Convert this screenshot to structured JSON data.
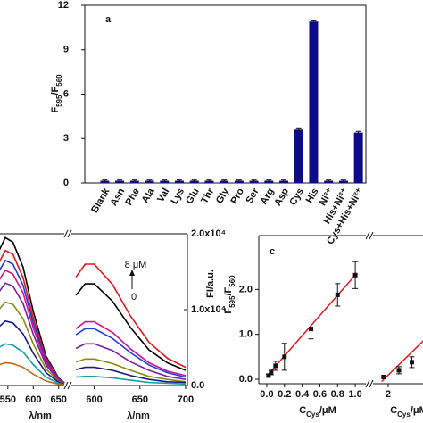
{
  "chart_data": [
    {
      "type": "bar",
      "label": "a",
      "ylabel": [
        {
          "text": "F"
        },
        {
          "text": "595",
          "sub": true
        },
        {
          "text": "/F"
        },
        {
          "text": "560",
          "sub": true
        }
      ],
      "categories": [
        "Blank",
        "Asn",
        "Phe",
        "Ala",
        "Val",
        "Lys",
        "Glu",
        "Thr",
        "Gly",
        "Pro",
        "Ser",
        "Arg",
        "Asp",
        "Cys",
        "His",
        "Ni²⁺",
        "His+Ni²⁺",
        "Cys+His+Ni²⁺"
      ],
      "values": [
        0.15,
        0.15,
        0.15,
        0.15,
        0.15,
        0.15,
        0.15,
        0.15,
        0.15,
        0.15,
        0.15,
        0.15,
        0.15,
        3.6,
        10.9,
        0.15,
        0.15,
        3.4
      ],
      "errors": [
        0.05,
        0.05,
        0.05,
        0.05,
        0.05,
        0.05,
        0.05,
        0.05,
        0.05,
        0.05,
        0.05,
        0.05,
        0.05,
        0.12,
        0.1,
        0.05,
        0.05,
        0.08
      ],
      "color": "#0c0c8a",
      "ylim": [
        0,
        12
      ],
      "yticks": [
        0,
        3,
        6,
        9,
        12
      ]
    },
    {
      "type": "line",
      "xlabel": "λ/nm",
      "ylabel": "FI/a.u.",
      "annotation": {
        "top": "8 μM",
        "bottom": "0"
      },
      "ylim": [
        0,
        20000
      ],
      "yticks": [
        {
          "value": 0,
          "label": "0.0"
        },
        {
          "value": 10000,
          "label": "1.0x10⁴"
        },
        {
          "value": 20000,
          "label": "2.0x10⁴"
        }
      ],
      "segments": [
        {
          "xlim": [
            531,
            661
          ],
          "xticks": [
            550,
            600,
            650
          ],
          "x": [
            531,
            545,
            560,
            580,
            600,
            625,
            650,
            661
          ],
          "series": [
            {
              "color": "#000000",
              "values": [
                17550,
                19500,
                18900,
                15600,
                9750,
                3900,
                980,
                390
              ]
            },
            {
              "color": "#e8141c",
              "values": [
                16000,
                17800,
                17300,
                14200,
                8900,
                3600,
                890,
                360
              ]
            },
            {
              "color": "#1f3fd6",
              "values": [
                14900,
                16500,
                16000,
                13200,
                8250,
                3300,
                830,
                330
              ]
            },
            {
              "color": "#d6108c",
              "values": [
                13700,
                15200,
                14700,
                12200,
                7600,
                3000,
                760,
                300
              ]
            },
            {
              "color": "#7a1fa0",
              "values": [
                12200,
                13500,
                13100,
                10800,
                6750,
                2700,
                680,
                270
              ]
            },
            {
              "color": "#8a8a10",
              "values": [
                9900,
                11000,
                10700,
                8800,
                5500,
                2200,
                550,
                220
              ]
            },
            {
              "color": "#1a1a80",
              "values": [
                7650,
                8500,
                8250,
                6800,
                4250,
                1700,
                430,
                170
              ]
            },
            {
              "color": "#13a0a8",
              "values": [
                4950,
                5500,
                5300,
                4400,
                2750,
                1100,
                280,
                110
              ]
            },
            {
              "color": "#c06a1a",
              "values": [
                2700,
                3000,
                2900,
                2400,
                1500,
                600,
                150,
                60
              ]
            }
          ]
        },
        {
          "xlim": [
            575,
            702
          ],
          "xticks": [
            600,
            650,
            700
          ],
          "x": [
            580,
            590,
            600,
            620,
            640,
            660,
            680,
            700
          ],
          "series": [
            {
              "color": "#e8141c",
              "values": [
                14300,
                16000,
                16000,
                13300,
                9100,
                5700,
                3600,
                2400
              ]
            },
            {
              "color": "#000000",
              "values": [
                11900,
                13400,
                13400,
                11100,
                7600,
                4700,
                3000,
                2000
              ]
            },
            {
              "color": "#d6108c",
              "values": [
                7500,
                8400,
                8400,
                7000,
                4800,
                3000,
                1900,
                1300
              ]
            },
            {
              "color": "#1f3fd6",
              "values": [
                6700,
                7500,
                7500,
                6200,
                4300,
                2700,
                1700,
                1100
              ]
            },
            {
              "color": "#7a1fa0",
              "values": [
                4900,
                5500,
                5500,
                4600,
                3100,
                2000,
                1200,
                800
              ]
            },
            {
              "color": "#8a8a10",
              "values": [
                3100,
                3500,
                3500,
                2900,
                2000,
                1200,
                800,
                500
              ]
            },
            {
              "color": "#1a1a80",
              "values": [
                2100,
                2400,
                2400,
                2000,
                1300,
                800,
                500,
                400
              ]
            },
            {
              "color": "#13a0a8",
              "values": [
                1100,
                1200,
                1200,
                1000,
                700,
                400,
                300,
                200
              ]
            }
          ]
        }
      ]
    },
    {
      "type": "scatter",
      "label": "c",
      "xlabel": [
        {
          "text": "C"
        },
        {
          "text": "Cys",
          "sub": true
        },
        {
          "text": "/μM"
        }
      ],
      "ylabel": [
        {
          "text": "F"
        },
        {
          "text": "595",
          "sub": true
        },
        {
          "text": "/F"
        },
        {
          "text": "560",
          "sub": true
        }
      ],
      "ylim": [
        -0.1,
        3.2
      ],
      "yticks": [
        {
          "value": 0,
          "label": "0.0"
        },
        {
          "value": 1,
          "label": "1.0"
        },
        {
          "value": 2,
          "label": "2.0"
        }
      ],
      "segments": [
        {
          "xlim": [
            -0.09,
            1.12
          ],
          "xticks": [
            {
              "value": 0,
              "label": "0.0"
            },
            0.2,
            0.4,
            0.6,
            0.8,
            {
              "value": 1,
              "label": "1.0"
            }
          ],
          "x": [
            0.02,
            0.05,
            0.1,
            0.2,
            0.5,
            0.8,
            1.0
          ],
          "values": [
            0.08,
            0.15,
            0.3,
            0.5,
            1.12,
            1.88,
            2.32
          ],
          "errors": [
            0.03,
            0.05,
            0.1,
            0.3,
            0.22,
            0.25,
            0.3
          ],
          "fit": {
            "x": [
              0,
              1.0
            ],
            "values": [
              0.07,
              2.32
            ],
            "color": "#e8141c"
          }
        },
        {
          "xlim": [
            1.3,
            4.9
          ],
          "xticks": [
            2,
            4
          ],
          "x": [
            1.8,
            2.5,
            3.1,
            4.0,
            4.6
          ],
          "values": [
            0.05,
            0.2,
            0.38,
            1.02,
            1.3
          ],
          "errors": [
            0.03,
            0.08,
            0.12,
            0.28,
            0.3
          ],
          "fit": {
            "x": [
              1.7,
              4.9
            ],
            "values": [
              -0.05,
              1.45
            ],
            "color": "#e8141c"
          }
        }
      ]
    }
  ]
}
